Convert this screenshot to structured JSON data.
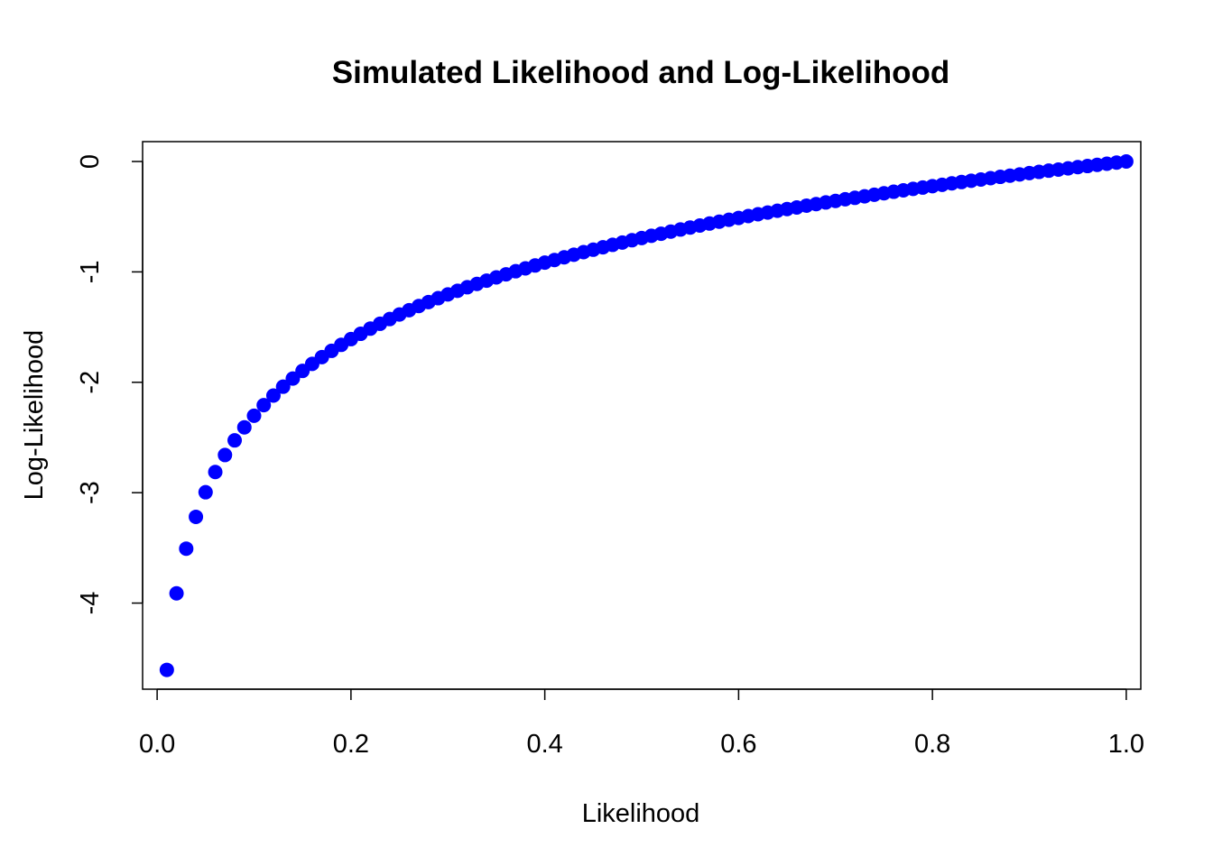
{
  "chart_data": {
    "type": "scatter",
    "title": "Simulated Likelihood and Log-Likelihood",
    "xlabel": "Likelihood",
    "ylabel": "Log-Likelihood",
    "xlim": [
      -0.015,
      1.015
    ],
    "ylim": [
      -4.78,
      0.18
    ],
    "x_ticks": [
      0.0,
      0.2,
      0.4,
      0.6,
      0.8,
      1.0
    ],
    "x_tick_labels": [
      "0.0",
      "0.2",
      "0.4",
      "0.6",
      "0.8",
      "1.0"
    ],
    "y_ticks": [
      -4,
      -3,
      -2,
      -1,
      0
    ],
    "y_tick_labels": [
      "-4",
      "-3",
      "-2",
      "-1",
      "0"
    ],
    "grid": false,
    "legend": "none",
    "point_color": "#0000ff",
    "series": [
      {
        "x": [
          0.01,
          0.02,
          0.03,
          0.04,
          0.05,
          0.06,
          0.07,
          0.08,
          0.09,
          0.1,
          0.11,
          0.12,
          0.13,
          0.14,
          0.15,
          0.16,
          0.17,
          0.18,
          0.19,
          0.2,
          0.21,
          0.22,
          0.23,
          0.24,
          0.25,
          0.26,
          0.27,
          0.28,
          0.29,
          0.3,
          0.31,
          0.32,
          0.33,
          0.34,
          0.35,
          0.36,
          0.37,
          0.38,
          0.39,
          0.4,
          0.41,
          0.42,
          0.43,
          0.44,
          0.45,
          0.46,
          0.47,
          0.48,
          0.49,
          0.5,
          0.51,
          0.52,
          0.53,
          0.54,
          0.55,
          0.56,
          0.57,
          0.58,
          0.59,
          0.6,
          0.61,
          0.62,
          0.63,
          0.64,
          0.65,
          0.66,
          0.67,
          0.68,
          0.69,
          0.7,
          0.71,
          0.72,
          0.73,
          0.74,
          0.75,
          0.76,
          0.77,
          0.78,
          0.79,
          0.8,
          0.81,
          0.82,
          0.83,
          0.84,
          0.85,
          0.86,
          0.87,
          0.88,
          0.89,
          0.9,
          0.91,
          0.92,
          0.93,
          0.94,
          0.95,
          0.96,
          0.97,
          0.98,
          0.99,
          1.0
        ],
        "y": [
          -4.605,
          -3.912,
          -3.507,
          -3.219,
          -2.996,
          -2.813,
          -2.659,
          -2.526,
          -2.408,
          -2.303,
          -2.207,
          -2.12,
          -2.04,
          -1.966,
          -1.897,
          -1.833,
          -1.772,
          -1.715,
          -1.661,
          -1.609,
          -1.561,
          -1.514,
          -1.47,
          -1.427,
          -1.386,
          -1.347,
          -1.309,
          -1.273,
          -1.238,
          -1.204,
          -1.171,
          -1.139,
          -1.109,
          -1.079,
          -1.05,
          -1.022,
          -0.994,
          -0.968,
          -0.942,
          -0.916,
          -0.892,
          -0.868,
          -0.844,
          -0.821,
          -0.799,
          -0.777,
          -0.755,
          -0.734,
          -0.713,
          -0.693,
          -0.673,
          -0.654,
          -0.635,
          -0.616,
          -0.598,
          -0.58,
          -0.562,
          -0.545,
          -0.528,
          -0.511,
          -0.494,
          -0.478,
          -0.462,
          -0.446,
          -0.431,
          -0.416,
          -0.4,
          -0.386,
          -0.371,
          -0.357,
          -0.342,
          -0.329,
          -0.315,
          -0.301,
          -0.288,
          -0.274,
          -0.261,
          -0.248,
          -0.236,
          -0.223,
          -0.211,
          -0.198,
          -0.186,
          -0.174,
          -0.163,
          -0.151,
          -0.139,
          -0.128,
          -0.117,
          -0.105,
          -0.094,
          -0.083,
          -0.073,
          -0.062,
          -0.051,
          -0.041,
          -0.03,
          -0.02,
          -0.01,
          0.0
        ]
      }
    ]
  }
}
